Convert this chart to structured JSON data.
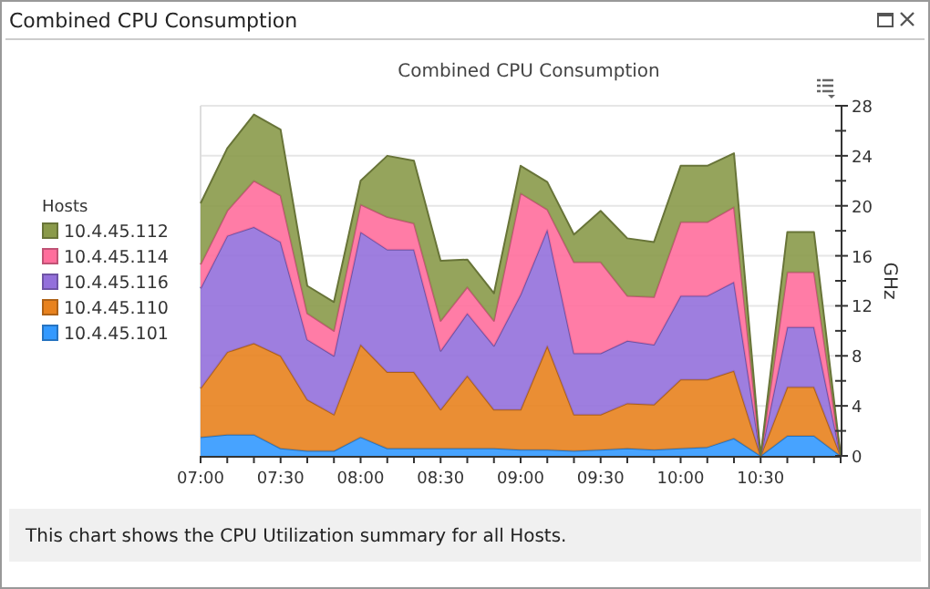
{
  "chart_data": {
    "type": "area",
    "stacked": true,
    "title": "Combined CPU Consumption",
    "ylabel": "GHz",
    "legend_title": "Hosts",
    "legend": "left",
    "grid": "y",
    "annotations": [
      "Combined CPU Consumption",
      "This chart shows the CPU Utilization summary for all Hosts."
    ],
    "x": [
      7,
      7.1667,
      7.3333,
      7.5,
      7.6667,
      7.8333,
      8,
      8.1667,
      8.3333,
      8.5,
      8.6667,
      8.8333,
      9,
      9.1667,
      9.3333,
      9.5,
      9.6667,
      9.8333,
      10,
      10.1667,
      10.3333,
      10.5,
      10.6667,
      10.8333,
      11
    ],
    "xlim": [
      7,
      11
    ],
    "xticks": [
      {
        "value": 7,
        "label": "07:00"
      },
      {
        "value": 7.1667,
        "label": null
      },
      {
        "value": 7.3333,
        "label": null
      },
      {
        "value": 7.5,
        "label": "07:30"
      },
      {
        "value": 7.6667,
        "label": null
      },
      {
        "value": 7.8333,
        "label": null
      },
      {
        "value": 8,
        "label": "08:00"
      },
      {
        "value": 8.1667,
        "label": null
      },
      {
        "value": 8.3333,
        "label": null
      },
      {
        "value": 8.5,
        "label": "08:30"
      },
      {
        "value": 8.6667,
        "label": null
      },
      {
        "value": 8.8333,
        "label": null
      },
      {
        "value": 9,
        "label": "09:00"
      },
      {
        "value": 9.1667,
        "label": null
      },
      {
        "value": 9.3333,
        "label": null
      },
      {
        "value": 9.5,
        "label": "09:30"
      },
      {
        "value": 9.6667,
        "label": null
      },
      {
        "value": 9.8333,
        "label": null
      },
      {
        "value": 10,
        "label": "10:00"
      },
      {
        "value": 10.1667,
        "label": null
      },
      {
        "value": 10.3333,
        "label": null
      },
      {
        "value": 10.5,
        "label": "10:30"
      },
      {
        "value": 10.6667,
        "label": null
      },
      {
        "value": 10.8333,
        "label": null
      },
      {
        "value": 11,
        "label": null
      }
    ],
    "ylim": [
      0,
      28
    ],
    "yticks": [
      0,
      {
        "value": 2,
        "label": null
      },
      4,
      {
        "value": 6,
        "label": null
      },
      8,
      {
        "value": 10,
        "label": null
      },
      12,
      {
        "value": 14,
        "label": null
      },
      16,
      {
        "value": 18,
        "label": null
      },
      20,
      {
        "value": 22,
        "label": null
      },
      24,
      {
        "value": 26,
        "label": null
      },
      28
    ],
    "series": [
      {
        "name": "10.4.45.101",
        "color": "#3399ff",
        "values": [
          1.5,
          1.7,
          1.7,
          0.6,
          0.4,
          0.4,
          1.5,
          0.6,
          0.6,
          0.6,
          0.6,
          0.6,
          0.5,
          0.5,
          0.4,
          0.5,
          0.6,
          0.5,
          0.6,
          0.7,
          1.4,
          0,
          1.6,
          1.6,
          0
        ]
      },
      {
        "name": "10.4.45.110",
        "color": "#e8821e",
        "values": [
          3.9,
          6.6,
          7.3,
          7.4,
          4.1,
          2.9,
          7.4,
          6.1,
          6.1,
          3.1,
          5.8,
          3.1,
          3.2,
          8.3,
          2.9,
          2.8,
          3.6,
          3.6,
          5.5,
          5.4,
          5.4,
          0,
          3.9,
          3.9,
          0
        ]
      },
      {
        "name": "10.4.45.116",
        "color": "#9370db",
        "values": [
          8.0,
          9.3,
          9.3,
          9.1,
          4.8,
          4.7,
          9.0,
          9.8,
          9.8,
          4.7,
          5.0,
          5.1,
          9.2,
          9.3,
          4.9,
          4.9,
          5.0,
          4.8,
          6.7,
          6.7,
          7.1,
          0,
          4.8,
          4.8,
          0
        ]
      },
      {
        "name": "10.4.45.114",
        "color": "#ff6e9c",
        "values": [
          1.9,
          2.0,
          3.7,
          3.7,
          2.1,
          2.0,
          2.2,
          2.6,
          2.1,
          2.4,
          2.1,
          2.0,
          8.1,
          1.6,
          7.3,
          7.3,
          3.6,
          3.8,
          5.9,
          5.9,
          6.0,
          0,
          4.4,
          4.4,
          0
        ]
      },
      {
        "name": "10.4.45.112",
        "color": "#8a9a4a",
        "values": [
          4.9,
          5.0,
          5.3,
          5.3,
          2.2,
          2.3,
          1.9,
          4.9,
          5.0,
          4.8,
          2.2,
          2.2,
          2.2,
          2.2,
          2.2,
          4.1,
          4.6,
          4.4,
          4.5,
          4.5,
          4.3,
          0,
          3.2,
          3.2,
          0
        ]
      }
    ]
  }
}
